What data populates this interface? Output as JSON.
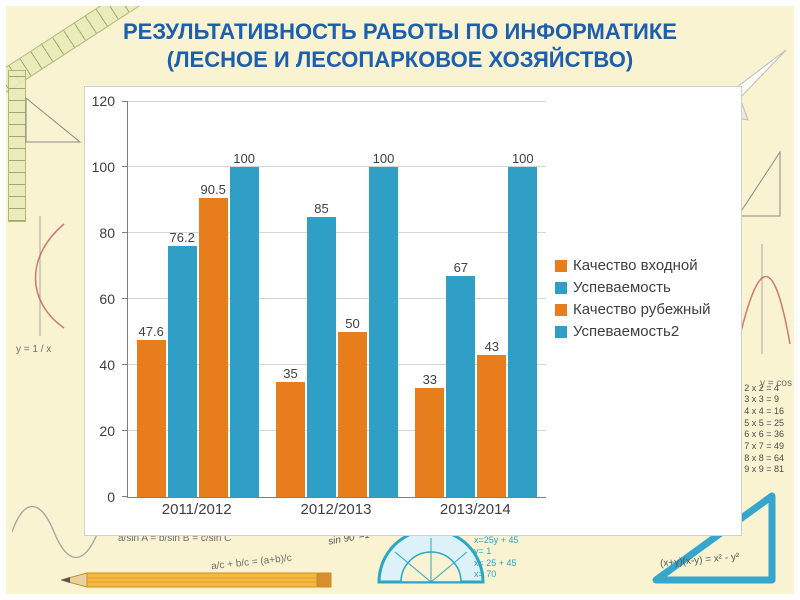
{
  "slide": {
    "title_line1": "РЕЗУЛЬТАТИВНОСТЬ РАБОТЫ ПО ИНФОРМАТИКЕ",
    "title_line2": "(ЛЕСНОЕ И ЛЕСОПАРКОВОЕ ХОЗЯЙСТВО)"
  },
  "colors": {
    "title": "#1C5FAF",
    "orange": "#E87D1E",
    "teal": "#2F9FC6",
    "slide_bg": "#FAF3D2",
    "plot_bg": "#FFFFFF",
    "grid": "#D6D6D6",
    "axis_text": "#3F3F3F"
  },
  "chart_data": {
    "type": "bar",
    "categories": [
      "2011/2012",
      "2012/2013",
      "2013/2014"
    ],
    "series": [
      {
        "name": "Качество входной",
        "color_key": "orange",
        "values": [
          47.6,
          35,
          33
        ]
      },
      {
        "name": "Успеваемость",
        "color_key": "teal",
        "values": [
          76.2,
          85,
          67
        ]
      },
      {
        "name": "Качество рубежный",
        "color_key": "orange",
        "values": [
          90.5,
          50,
          43
        ]
      },
      {
        "name": "Успеваемость2",
        "color_key": "teal",
        "values": [
          100,
          100,
          100
        ]
      }
    ],
    "xlabel": "",
    "ylabel": "",
    "ylim": [
      0,
      120
    ],
    "yticks": [
      0,
      20,
      40,
      60,
      80,
      100,
      120
    ],
    "grid": true,
    "legend_position": "right",
    "data_labels": true
  },
  "decorations": {
    "mult_table": "2 x 2 = 4\n3 x 3 = 9\n4 x 4 = 16\n5 x 5 = 25\n6 x 6 = 36\n7 x 7 = 49\n8 x 8 = 64\n9 x 9 = 81",
    "system": "y=sin 90\nx=25y + 45\ny= 1\nx= 25 + 45\nx= 70",
    "sines_law": "a/sin A = b/sin B = c/sin C",
    "frac_sum": "a/c + b/c = (a+b)/c",
    "sin90": "sin 90°=1",
    "inverse": "y = 1 / x",
    "cos": "y = cos",
    "diff_squares": "(x+y)(x-y) = x² - y²"
  }
}
